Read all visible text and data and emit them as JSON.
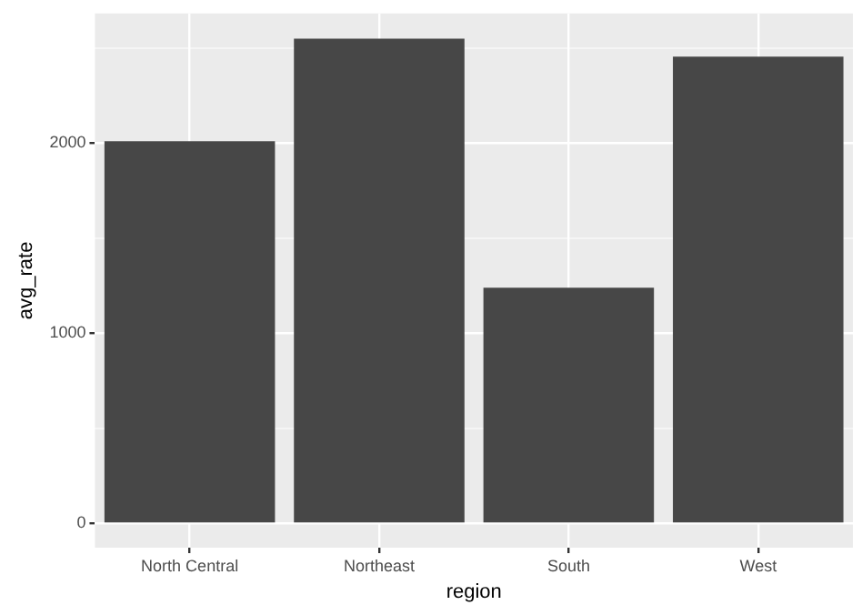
{
  "chart_data": {
    "type": "bar",
    "xlabel": "region",
    "ylabel": "avg_rate",
    "categories": [
      "North Central",
      "Northeast",
      "South",
      "West"
    ],
    "values": [
      2010,
      2550,
      1240,
      2455
    ],
    "color": "#474747",
    "ylim": [
      -127,
      2682
    ],
    "yticks": [
      0,
      {
        "value": 500,
        "label": null
      },
      1000,
      {
        "value": 1500,
        "label": null
      },
      2000,
      {
        "value": 2500,
        "label": null
      }
    ],
    "grid": true,
    "legend": false
  }
}
